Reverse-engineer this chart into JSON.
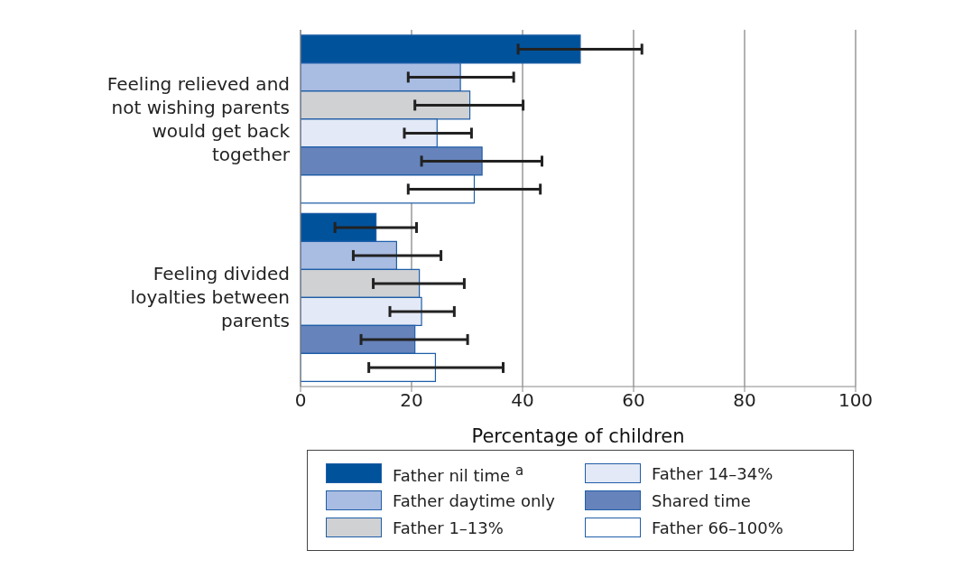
{
  "chart_data": {
    "type": "bar",
    "orientation": "horizontal",
    "xlabel": "Percentage of children",
    "categories": [
      "Feeling relieved and not wishing parents would get back together",
      "Feeling divided loyalties between parents"
    ],
    "xlim": [
      0,
      100
    ],
    "xticks": [
      0,
      20,
      40,
      60,
      80,
      100
    ],
    "grid": "x",
    "legend": "bottom",
    "series": [
      {
        "name": "Father nil time $^{a}$",
        "color": "#00529b",
        "values": [
          50.4,
          13.6
        ],
        "errors": [
          [
            39.2,
            61.5
          ],
          [
            6.2,
            20.9
          ]
        ]
      },
      {
        "name": "Father daytime only",
        "color": "#a9bce2",
        "values": [
          28.8,
          17.3
        ],
        "errors": [
          [
            19.4,
            38.4
          ],
          [
            9.5,
            25.3
          ]
        ]
      },
      {
        "name": "Father 1–13%",
        "color": "#d0d1d3",
        "values": [
          30.5,
          21.4
        ],
        "errors": [
          [
            20.6,
            40.1
          ],
          [
            13.1,
            29.5
          ]
        ]
      },
      {
        "name": "Father 14–34%",
        "color": "#e3e9f6",
        "values": [
          24.6,
          21.8
        ],
        "errors": [
          [
            18.7,
            30.8
          ],
          [
            16.1,
            27.7
          ]
        ]
      },
      {
        "name": "Shared time",
        "color": "#6683bb",
        "values": [
          32.7,
          20.6
        ],
        "errors": [
          [
            21.8,
            43.5
          ],
          [
            10.9,
            30.1
          ]
        ]
      },
      {
        "name": "Father 66–100%",
        "color": "#ffffff",
        "values": [
          31.3,
          24.3
        ],
        "errors": [
          [
            19.4,
            43.2
          ],
          [
            12.3,
            36.5
          ]
        ]
      }
    ]
  }
}
